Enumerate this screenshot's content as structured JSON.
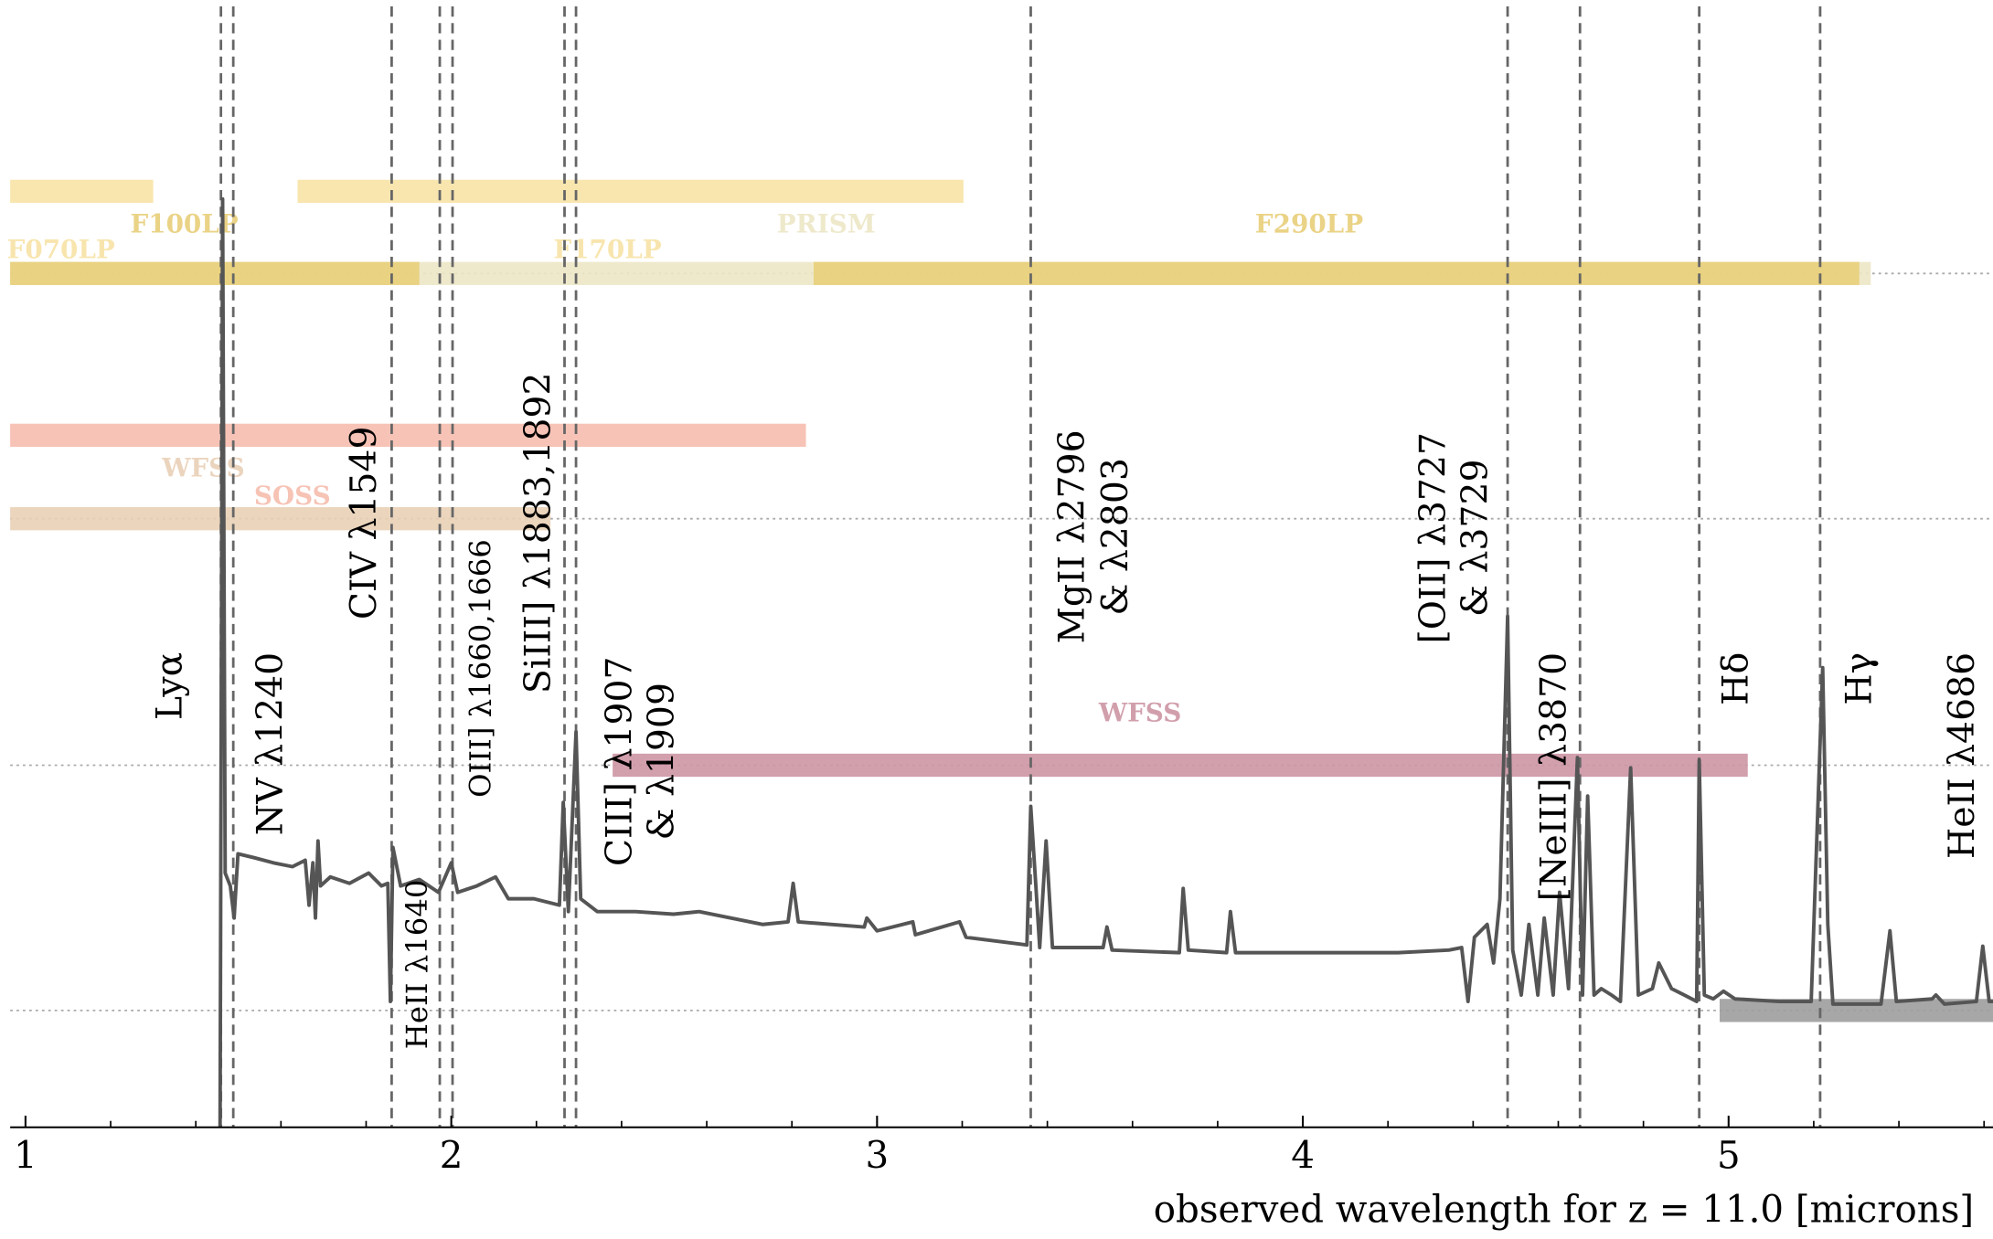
{
  "chart_data": {
    "type": "line",
    "xlabel": "observed wavelength for z = 11.0 [microns]",
    "xlim": [
      0.964,
      5.621
    ],
    "ylim": [
      0,
      878
    ],
    "xticks": [
      1,
      2,
      3,
      4,
      5
    ],
    "xminorticks": [
      1.2,
      1.4,
      1.6,
      1.8,
      2.2,
      2.4,
      2.6,
      2.8,
      3.2,
      3.4,
      3.6,
      3.8,
      4.2,
      4.4,
      4.6,
      4.8,
      5.2,
      5.4,
      5.6
    ],
    "grid": true,
    "series": [
      {
        "color": "#555555",
        "x": [
          1.457,
          1.463,
          1.469,
          1.481,
          1.49,
          1.499,
          1.537,
          1.582,
          1.627,
          1.657,
          1.666,
          1.675,
          1.681,
          1.687,
          1.693,
          1.716,
          1.761,
          1.806,
          1.836,
          1.851,
          1.857,
          1.863,
          1.881,
          1.925,
          1.97,
          2.0,
          2.015,
          2.06,
          2.104,
          2.134,
          2.194,
          2.254,
          2.263,
          2.275,
          2.293,
          2.304,
          2.343,
          2.433,
          2.522,
          2.582,
          2.731,
          2.791,
          2.803,
          2.815,
          2.97,
          2.976,
          3.0,
          3.084,
          3.09,
          3.194,
          3.209,
          3.352,
          3.361,
          3.373,
          3.382,
          3.397,
          3.412,
          3.531,
          3.54,
          3.552,
          3.71,
          3.719,
          3.731,
          3.821,
          3.83,
          3.842,
          4.224,
          4.343,
          4.373,
          4.388,
          4.403,
          4.433,
          4.448,
          4.463,
          4.481,
          4.493,
          4.513,
          4.531,
          4.552,
          4.567,
          4.588,
          4.603,
          4.624,
          4.645,
          4.657,
          4.669,
          4.684,
          4.701,
          4.725,
          4.746,
          4.77,
          4.788,
          4.821,
          4.836,
          4.866,
          4.896,
          4.925,
          4.931,
          4.943,
          4.964,
          4.988,
          5.015,
          5.119,
          5.194,
          5.221,
          5.233,
          5.245,
          5.358,
          5.379,
          5.394,
          5.478,
          5.487,
          5.507,
          5.582,
          5.597,
          5.612,
          5.621
        ],
        "values": [
          0,
          723,
          198,
          188,
          163,
          213,
          210,
          206,
          203,
          208,
          173,
          206,
          163,
          223,
          188,
          195,
          190,
          198,
          188,
          190,
          98,
          218,
          188,
          193,
          183,
          206,
          183,
          188,
          195,
          178,
          178,
          173,
          253,
          168,
          308,
          178,
          168,
          168,
          166,
          168,
          158,
          160,
          190,
          160,
          156,
          163,
          153,
          160,
          150,
          160,
          148,
          142,
          250,
          188,
          140,
          223,
          140,
          140,
          156,
          138,
          136,
          186,
          138,
          136,
          168,
          136,
          136,
          138,
          140,
          98,
          148,
          158,
          128,
          178,
          398,
          138,
          103,
          158,
          103,
          163,
          103,
          183,
          108,
          288,
          103,
          258,
          103,
          108,
          103,
          98,
          280,
          103,
          108,
          128,
          108,
          103,
          98,
          286,
          103,
          100,
          106,
          100,
          98,
          98,
          358,
          158,
          96,
          96,
          153,
          98,
          100,
          103,
          96,
          98,
          141,
          98,
          98
        ]
      }
    ],
    "lines": [
      {
        "x": 1.459,
        "label": [
          "Lyα"
        ]
      },
      {
        "x": 1.488,
        "label": [
          "NV λ1240"
        ]
      },
      {
        "x": 1.86,
        "label": [
          "CIV λ1549"
        ]
      },
      {
        "x": 1.973,
        "label": [
          "HeII λ1640"
        ]
      },
      {
        "x": 2.003,
        "label": [
          "OIII] λ1660,1666"
        ]
      },
      {
        "x": 2.266,
        "label": [
          "SiIII] λ1883,1892"
        ]
      },
      {
        "x": 2.293,
        "label": [
          "CIII] λ1907",
          "& λ1909"
        ]
      },
      {
        "x": 3.361,
        "label": [
          "MgII λ2796",
          "& λ2803"
        ]
      },
      {
        "x": 4.481,
        "label": [
          "[OII] λ3727",
          "& λ3729"
        ]
      },
      {
        "x": 4.651,
        "label": [
          "[NeIII] λ3870"
        ]
      },
      {
        "x": 4.931,
        "label": [
          "Hδ"
        ]
      },
      {
        "x": 5.215,
        "label": [
          "Hγ"
        ]
      },
      {
        "label": [
          "HeII λ4686"
        ]
      }
    ],
    "bands": [
      {
        "name": "F070LP",
        "color": "#f8e3a6",
        "range": [
          0.964,
          1.3
        ]
      },
      {
        "name": "F170LP",
        "color": "#f8e3a6",
        "range": [
          1.639,
          3.203
        ]
      },
      {
        "name": "PRISM",
        "color": "#ede7c6",
        "range": [
          0.964,
          5.334
        ]
      },
      {
        "name": "F100LP",
        "color": "#e8cf7a",
        "range": [
          0.964,
          1.925
        ]
      },
      {
        "name": "F290LP",
        "color": "#e8cf7a",
        "range": [
          2.851,
          5.307
        ]
      },
      {
        "name": "SOSS",
        "color": "#f6bdae",
        "range": [
          0.964,
          2.833
        ]
      },
      {
        "name": "WFSS",
        "color": "#e9d0b6",
        "range": [
          0.964,
          2.233
        ]
      },
      {
        "name": "WFSS",
        "color": "#cd95a4",
        "range": [
          2.379,
          5.045
        ]
      },
      {
        "color": "#9d9d9d",
        "range": [
          4.979,
          5.621
        ]
      }
    ]
  }
}
